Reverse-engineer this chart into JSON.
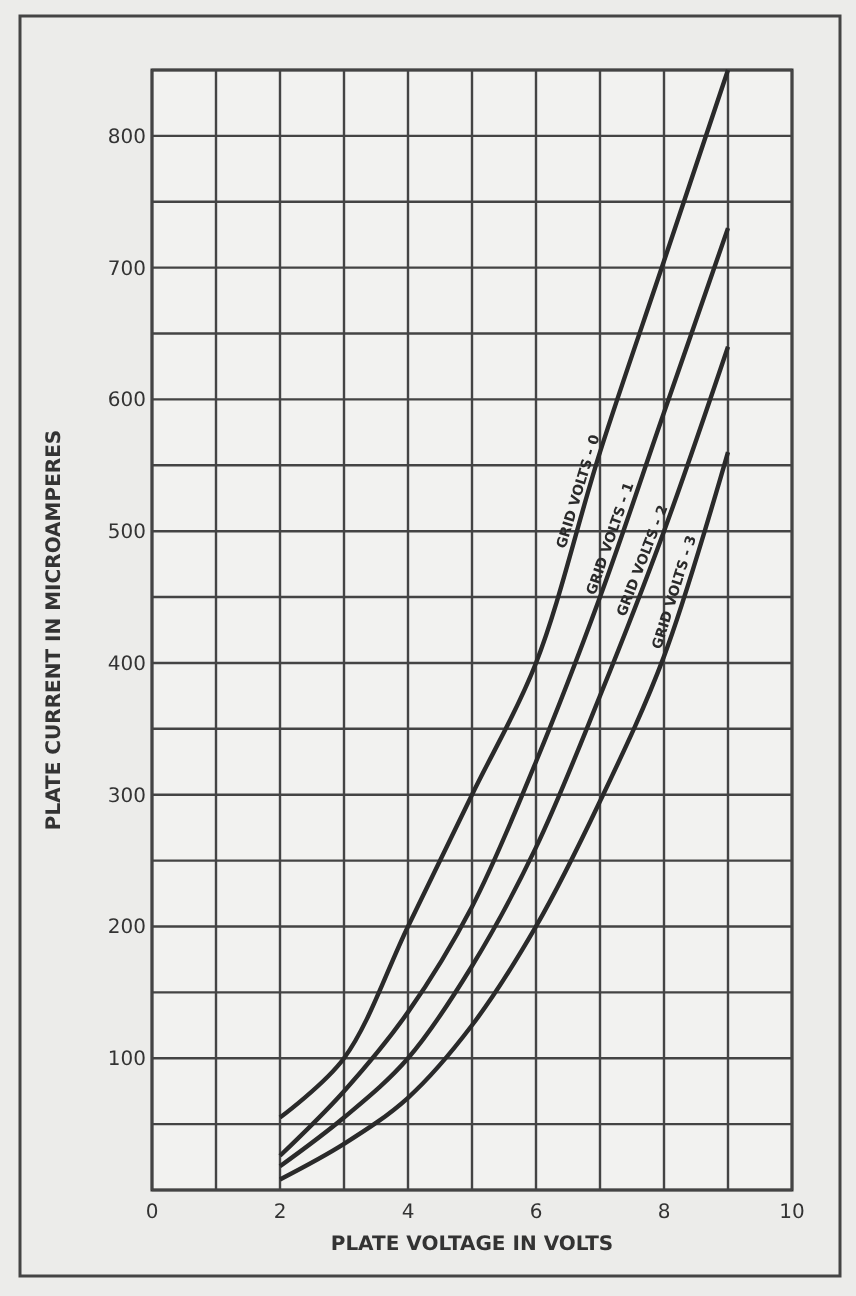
{
  "chart_data": {
    "type": "line",
    "xlabel": "PLATE VOLTAGE IN VOLTS",
    "ylabel": "PLATE CURRENT IN MICROAMPERES",
    "x": [
      2,
      3,
      4,
      5,
      6,
      7,
      8,
      9
    ],
    "series": [
      {
        "name": "GRID VOLTS - 0",
        "color": "#2a2a2a",
        "values": [
          55,
          100,
          200,
          300,
          400,
          560,
          705,
          850
        ]
      },
      {
        "name": "GRID VOLTS - 1",
        "color": "#2a2a2a",
        "values": [
          26,
          75,
          135,
          215,
          325,
          450,
          590,
          730
        ]
      },
      {
        "name": "GRID VOLTS - 2",
        "color": "#2a2a2a",
        "values": [
          18,
          55,
          100,
          170,
          260,
          375,
          500,
          640
        ]
      },
      {
        "name": "GRID VOLTS - 3",
        "color": "#2a2a2a",
        "values": [
          8,
          35,
          70,
          125,
          200,
          295,
          405,
          560
        ]
      }
    ],
    "xlim": [
      0,
      10
    ],
    "xticks": [
      0,
      {
        "value": 1,
        "label": null
      },
      2,
      {
        "value": 3,
        "label": null
      },
      4,
      {
        "value": 5,
        "label": null
      },
      6,
      {
        "value": 7,
        "label": null
      },
      8,
      {
        "value": 9,
        "label": null
      },
      10
    ],
    "ylim": [
      0,
      850
    ],
    "yticks": [
      {
        "value": 0,
        "label": null
      },
      {
        "value": 50,
        "label": null
      },
      100,
      {
        "value": 150,
        "label": null
      },
      200,
      {
        "value": 250,
        "label": null
      },
      300,
      {
        "value": 350,
        "label": null
      },
      400,
      {
        "value": 450,
        "label": null
      },
      500,
      {
        "value": 550,
        "label": null
      },
      600,
      {
        "value": 650,
        "label": null
      },
      700,
      {
        "value": 750,
        "label": null
      },
      800,
      {
        "value": 850,
        "label": null
      }
    ],
    "grid": true,
    "marker": "none",
    "line_style": "solid"
  }
}
